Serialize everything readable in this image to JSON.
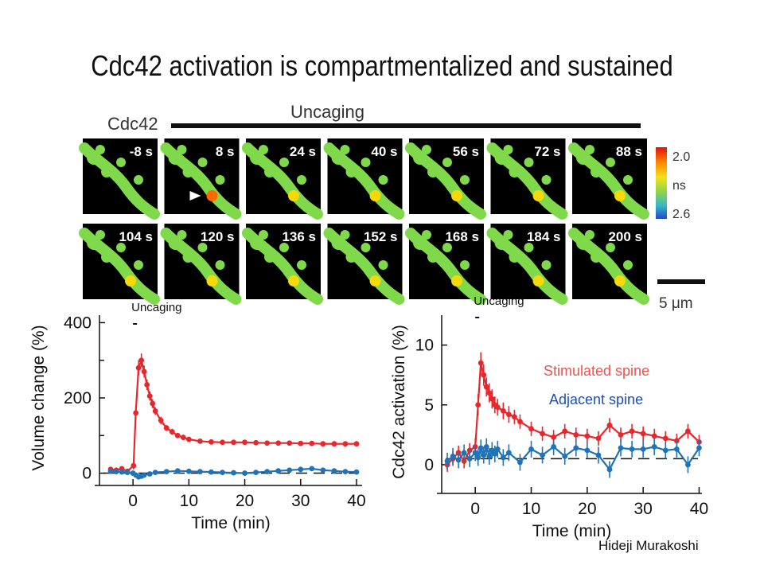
{
  "slide": {
    "title": "Cdc42 activation is compartmentalized and sustained",
    "author": "Hideji Murakoshi"
  },
  "imaging": {
    "row_label": "Cdc42",
    "uncaging_label": "Uncaging",
    "frame_times": [
      "-8 s",
      "8 s",
      "24 s",
      "40 s",
      "56 s",
      "72 s",
      "88 s",
      "104 s",
      "120 s",
      "136 s",
      "152 s",
      "168 s",
      "184 s",
      "200 s"
    ],
    "arrowhead": "white-arrowhead-icon",
    "colorbar": {
      "top": "2.0",
      "mid": "ns",
      "bottom": "2.6"
    },
    "scale_bar": "5 μm",
    "colors": {
      "background": "#000000",
      "dendrite": "#7fd94a",
      "spine_hot": "#f5d90a",
      "spine_peak": "#ff6a00"
    }
  },
  "colors": {
    "stimulated": "#e8262b",
    "adjacent": "#1f73b7",
    "legend_stimulated": "#ef5350",
    "legend_adjacent": "#1b4fb5"
  },
  "chart_data": [
    {
      "type": "line",
      "title": "",
      "xlabel": "Time (min)",
      "ylabel": "Volume change (%)",
      "xlim": [
        -6,
        41
      ],
      "ylim": [
        -20,
        420
      ],
      "xticks": [
        0,
        10,
        20,
        30,
        40
      ],
      "yticks": [
        0,
        200,
        400
      ],
      "annotation": "Uncaging",
      "baseline": 0,
      "series": [
        {
          "x": [
            -4,
            -3,
            -2,
            -1,
            0.1,
            0.5,
            1,
            1.5,
            2,
            2.5,
            3,
            3.5,
            4,
            5,
            6,
            7,
            8,
            9,
            10,
            12,
            14,
            16,
            18,
            20,
            22,
            24,
            26,
            28,
            30,
            32,
            34,
            36,
            38,
            40
          ],
          "y": [
            10,
            8,
            12,
            5,
            20,
            160,
            280,
            300,
            270,
            235,
            205,
            185,
            165,
            140,
            120,
            110,
            100,
            95,
            90,
            85,
            83,
            82,
            82,
            82,
            81,
            80,
            80,
            80,
            79,
            79,
            78,
            78,
            78,
            78
          ],
          "err": [
            6,
            6,
            6,
            6,
            10,
            18,
            20,
            18,
            16,
            14,
            12,
            12,
            10,
            10,
            8,
            8,
            7,
            7,
            6,
            6,
            5,
            5,
            5,
            5,
            5,
            5,
            5,
            5,
            5,
            5,
            5,
            5,
            5,
            5
          ]
        },
        {
          "x": [
            -4,
            -3,
            -2,
            -1,
            0,
            0.5,
            1,
            1.5,
            2,
            3,
            4,
            6,
            8,
            10,
            12,
            14,
            16,
            18,
            20,
            22,
            24,
            26,
            28,
            30,
            32,
            34,
            36,
            38,
            40
          ],
          "y": [
            5,
            4,
            3,
            2,
            0,
            -5,
            -10,
            -8,
            -5,
            -2,
            2,
            4,
            6,
            5,
            4,
            3,
            2,
            1,
            0,
            2,
            4,
            6,
            8,
            10,
            12,
            8,
            6,
            4,
            3
          ],
          "err": [
            4,
            4,
            4,
            4,
            4,
            5,
            5,
            5,
            5,
            4,
            4,
            4,
            4,
            4,
            4,
            4,
            4,
            4,
            4,
            4,
            4,
            4,
            4,
            4,
            4,
            4,
            4,
            4,
            4
          ]
        }
      ]
    },
    {
      "type": "line",
      "title": "",
      "xlabel": "Time (min)",
      "ylabel": "Cdc42 activation (%)",
      "xlim": [
        -6,
        40.5
      ],
      "ylim": [
        -2,
        12.5
      ],
      "xticks": [
        0,
        10,
        20,
        30,
        40
      ],
      "yticks": [
        0,
        5,
        10
      ],
      "annotation": "Uncaging",
      "baseline": 0.5,
      "legend": [
        "Stimulated spine",
        "Adjacent spine"
      ],
      "series": [
        {
          "name": "Stimulated spine",
          "x": [
            -5,
            -4,
            -3,
            -2,
            -1,
            0,
            0.5,
            1,
            1.5,
            2,
            2.5,
            3,
            3.5,
            4,
            5,
            6,
            7,
            8,
            10,
            12,
            14,
            16,
            18,
            20,
            22,
            24,
            26,
            28,
            30,
            32,
            34,
            36,
            38,
            40
          ],
          "y": [
            0,
            0.5,
            1,
            0.3,
            1.2,
            1.5,
            5,
            8.5,
            7.5,
            6.5,
            6,
            5.5,
            5,
            4.8,
            4.5,
            4.2,
            4,
            3.6,
            3,
            2.6,
            2.3,
            2.8,
            2.5,
            2.4,
            2.2,
            3.3,
            2.5,
            2.8,
            2.6,
            2.4,
            2.2,
            2,
            2.8,
            1.9
          ],
          "err": [
            0.6,
            0.6,
            0.6,
            0.6,
            0.6,
            0.7,
            0.9,
            0.9,
            0.9,
            0.8,
            0.8,
            0.8,
            0.7,
            0.7,
            0.7,
            0.7,
            0.6,
            0.6,
            0.6,
            0.6,
            0.6,
            0.6,
            0.6,
            0.6,
            0.6,
            0.6,
            0.6,
            0.6,
            0.6,
            0.6,
            0.6,
            0.6,
            0.6,
            0.6
          ]
        },
        {
          "name": "Adjacent spine",
          "x": [
            -5,
            -4,
            -3,
            -2,
            -1,
            0,
            0.5,
            1,
            1.5,
            2,
            2.5,
            3,
            3.5,
            4,
            5,
            6,
            8,
            10,
            12,
            14,
            16,
            18,
            20,
            22,
            24,
            26,
            28,
            30,
            32,
            34,
            36,
            38,
            40
          ],
          "y": [
            0.3,
            0.7,
            0.4,
            1,
            0.5,
            1,
            0.6,
            1.4,
            0.8,
            1.5,
            0.7,
            1.2,
            0.9,
            1.3,
            0.6,
            1,
            0.2,
            1.3,
            0.8,
            1.5,
            0.7,
            1.4,
            1.2,
            0.8,
            -0.4,
            1.4,
            1.3,
            1.3,
            1.5,
            1.2,
            1.3,
            0,
            1.4
          ],
          "err": [
            0.7,
            0.7,
            0.7,
            0.7,
            0.7,
            0.7,
            0.7,
            0.7,
            0.7,
            0.7,
            0.7,
            0.7,
            0.7,
            0.7,
            0.7,
            0.7,
            0.7,
            0.7,
            0.7,
            0.7,
            0.7,
            0.7,
            0.7,
            0.7,
            0.7,
            0.7,
            0.7,
            0.7,
            0.7,
            0.7,
            0.7,
            0.7,
            0.7
          ]
        }
      ]
    }
  ]
}
